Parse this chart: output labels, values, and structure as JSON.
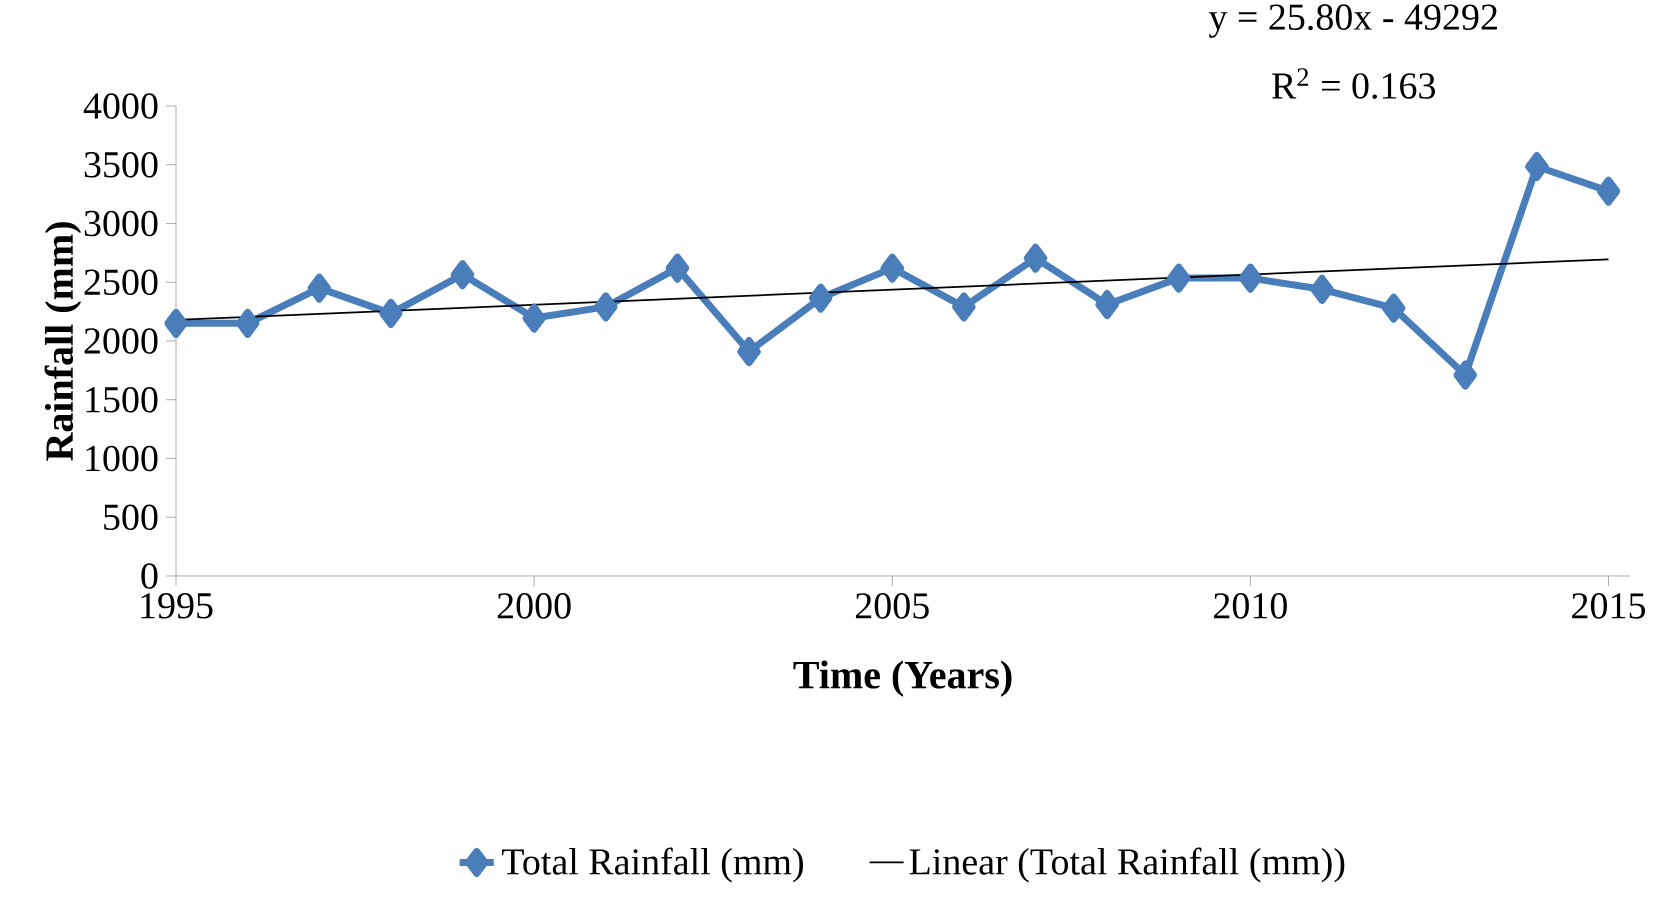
{
  "chart_data": {
    "type": "line",
    "xlabel": "Time (Years)",
    "ylabel": "Rainfall (mm)",
    "x": [
      1995,
      1996,
      1997,
      1998,
      1999,
      2000,
      2001,
      2002,
      2003,
      2004,
      2005,
      2006,
      2007,
      2008,
      2009,
      2010,
      2011,
      2012,
      2013,
      2014,
      2015
    ],
    "series": [
      {
        "name": "Total Rainfall (mm)",
        "color": "#4a7ebb",
        "marker": "diamond",
        "values": [
          2150,
          2150,
          2450,
          2235,
          2565,
          2195,
          2290,
          2620,
          1910,
          2365,
          2620,
          2290,
          2705,
          2310,
          2535,
          2535,
          2440,
          2280,
          1710,
          3485,
          3275
        ]
      },
      {
        "name": "Linear (Total Rainfall (mm))",
        "color": "#000000",
        "marker": "none",
        "x": [
          1995,
          2015
        ],
        "values": [
          2179,
          2695
        ]
      }
    ],
    "xlim": [
      1995,
      2015.3
    ],
    "ylim": [
      0,
      4000
    ],
    "xticks": [
      1995,
      2000,
      2005,
      2010,
      2015
    ],
    "yticks": [
      0,
      500,
      1000,
      1500,
      2000,
      2500,
      3000,
      3500,
      4000
    ],
    "annotations": [
      "y = 25.80x - 49292",
      "R$^{2}$ = 0.163"
    ],
    "legend": "bottom",
    "grid": false
  }
}
